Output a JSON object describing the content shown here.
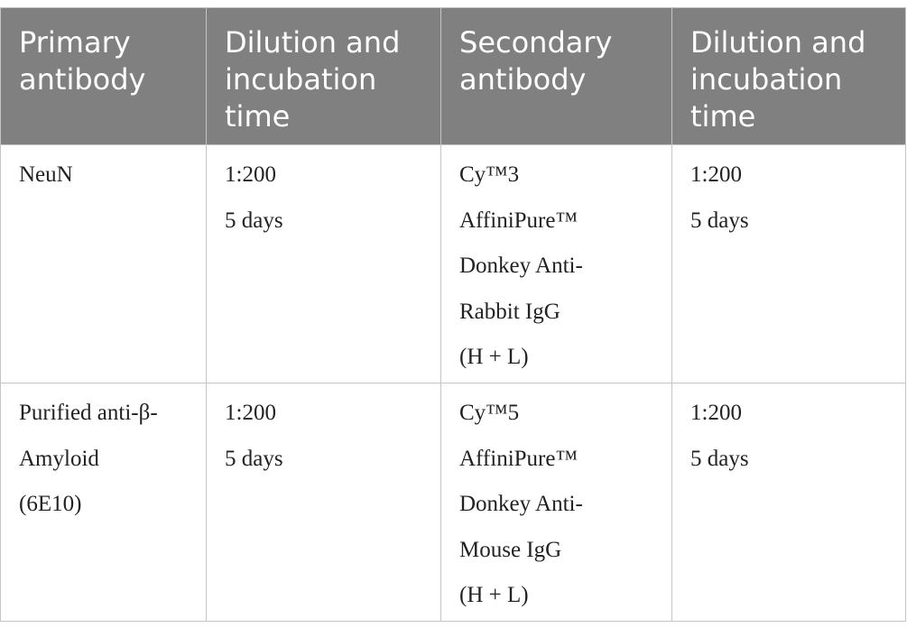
{
  "table": {
    "header": [
      [
        "Primary",
        "antibody"
      ],
      [
        "Dilution and",
        "incubation",
        "time"
      ],
      [
        "Secondary",
        "antibody"
      ],
      [
        "Dilution and",
        "incubation",
        "time"
      ]
    ],
    "rows": [
      [
        [
          "NeuN"
        ],
        [
          "1:200",
          "5 days"
        ],
        [
          "Cy™3",
          "AffiniPure™",
          "Donkey Anti-",
          "Rabbit IgG",
          "(H + L)"
        ],
        [
          "1:200",
          "5 days"
        ]
      ],
      [
        [
          "Purified anti-β-",
          "Amyloid",
          "(6E10)"
        ],
        [
          "1:200",
          "5 days"
        ],
        [
          "Cy™5",
          "AffiniPure™",
          "Donkey Anti-",
          "Mouse IgG",
          "(H + L)"
        ],
        [
          "1:200",
          "5 days"
        ]
      ]
    ]
  }
}
